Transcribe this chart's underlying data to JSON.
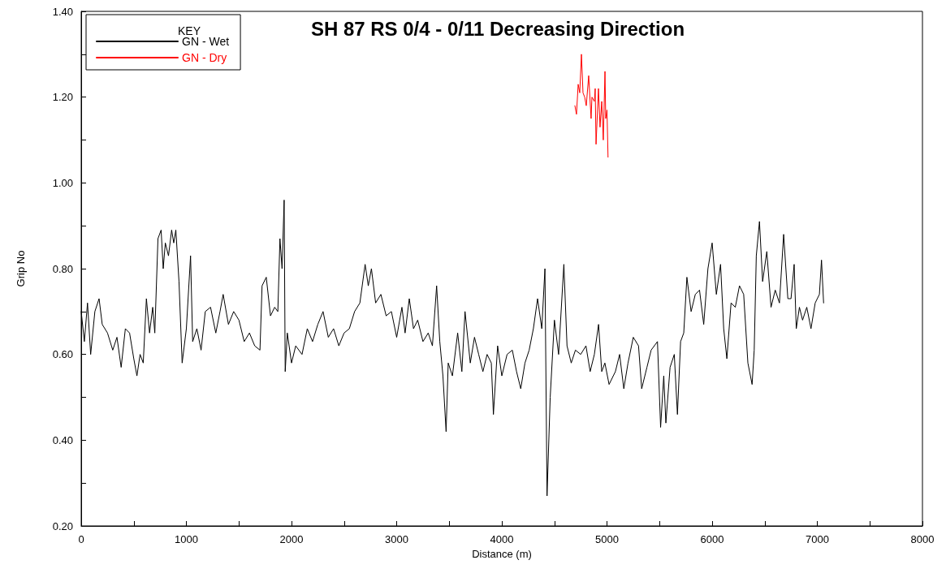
{
  "chart_data": {
    "type": "line",
    "title": "SH 87 RS 0/4 - 0/11 Decreasing Direction",
    "xlabel": "Distance (m)",
    "ylabel": "Grip No",
    "legend_title": "KEY",
    "legend": "top left",
    "grid": false,
    "marker": "none",
    "line_style": "solid",
    "xlim": [
      0,
      8000
    ],
    "xticks": [
      0,
      {
        "value": 500,
        "label": null
      },
      1000,
      {
        "value": 1500,
        "label": null
      },
      2000,
      {
        "value": 2500,
        "label": null
      },
      3000,
      {
        "value": 3500,
        "label": null
      },
      4000,
      {
        "value": 4500,
        "label": null
      },
      5000,
      {
        "value": 5500,
        "label": null
      },
      6000,
      {
        "value": 6500,
        "label": null
      },
      7000,
      {
        "value": 7500,
        "label": null
      },
      8000
    ],
    "ylim": [
      0.2,
      1.4
    ],
    "yticks": [
      {
        "value": 0.2,
        "label": "0.20"
      },
      {
        "value": 0.3,
        "label": null
      },
      {
        "value": 0.4,
        "label": "0.40"
      },
      {
        "value": 0.5,
        "label": null
      },
      {
        "value": 0.6,
        "label": "0.60"
      },
      {
        "value": 0.7,
        "label": null
      },
      {
        "value": 0.8,
        "label": "0.80"
      },
      {
        "value": 0.9,
        "label": null
      },
      {
        "value": 1.0,
        "label": "1.00"
      },
      {
        "value": 1.1,
        "label": null
      },
      {
        "value": 1.2,
        "label": "1.20"
      },
      {
        "value": 1.3,
        "label": null
      },
      {
        "value": 1.4,
        "label": "1.40"
      }
    ],
    "series": [
      {
        "name": "GN - Wet",
        "color": "#000000",
        "x": [
          0,
          30,
          60,
          90,
          130,
          170,
          200,
          250,
          300,
          340,
          380,
          420,
          460,
          500,
          530,
          560,
          590,
          620,
          650,
          680,
          700,
          730,
          760,
          780,
          800,
          830,
          860,
          880,
          900,
          930,
          960,
          1000,
          1040,
          1060,
          1100,
          1140,
          1180,
          1230,
          1280,
          1320,
          1350,
          1400,
          1450,
          1500,
          1550,
          1600,
          1650,
          1700,
          1720,
          1760,
          1800,
          1840,
          1870,
          1890,
          1910,
          1930,
          1940,
          1960,
          2000,
          2040,
          2100,
          2150,
          2200,
          2250,
          2300,
          2350,
          2400,
          2450,
          2500,
          2550,
          2600,
          2650,
          2700,
          2730,
          2760,
          2800,
          2850,
          2900,
          2950,
          3000,
          3050,
          3080,
          3120,
          3160,
          3200,
          3250,
          3300,
          3340,
          3380,
          3410,
          3440,
          3470,
          3490,
          3530,
          3580,
          3620,
          3650,
          3700,
          3740,
          3780,
          3820,
          3860,
          3900,
          3920,
          3960,
          4000,
          4050,
          4100,
          4140,
          4180,
          4220,
          4260,
          4300,
          4340,
          4380,
          4410,
          4430,
          4460,
          4500,
          4540,
          4590,
          4620,
          4660,
          4700,
          4750,
          4800,
          4840,
          4880,
          4920,
          4950,
          4980,
          5020,
          5080,
          5120,
          5160,
          5200,
          5250,
          5300,
          5330,
          5380,
          5420,
          5480,
          5510,
          5540,
          5560,
          5600,
          5640,
          5670,
          5700,
          5730,
          5760,
          5800,
          5840,
          5880,
          5920,
          5960,
          6000,
          6040,
          6080,
          6110,
          6140,
          6180,
          6220,
          6260,
          6300,
          6340,
          6380,
          6400,
          6420,
          6450,
          6480,
          6520,
          6560,
          6600,
          6640,
          6680,
          6720,
          6750,
          6780,
          6800,
          6830,
          6860,
          6900,
          6940,
          6980,
          7020,
          7040,
          7060
        ],
        "values": [
          0.7,
          0.63,
          0.72,
          0.6,
          0.7,
          0.73,
          0.67,
          0.65,
          0.61,
          0.64,
          0.57,
          0.66,
          0.65,
          0.59,
          0.55,
          0.6,
          0.58,
          0.73,
          0.65,
          0.71,
          0.65,
          0.87,
          0.89,
          0.8,
          0.86,
          0.83,
          0.89,
          0.86,
          0.89,
          0.77,
          0.58,
          0.66,
          0.83,
          0.63,
          0.66,
          0.61,
          0.7,
          0.71,
          0.65,
          0.7,
          0.74,
          0.67,
          0.7,
          0.68,
          0.63,
          0.65,
          0.62,
          0.61,
          0.76,
          0.78,
          0.69,
          0.71,
          0.7,
          0.87,
          0.8,
          0.96,
          0.56,
          0.65,
          0.58,
          0.62,
          0.6,
          0.66,
          0.63,
          0.67,
          0.7,
          0.64,
          0.66,
          0.62,
          0.65,
          0.66,
          0.7,
          0.72,
          0.81,
          0.76,
          0.8,
          0.72,
          0.74,
          0.69,
          0.7,
          0.64,
          0.71,
          0.65,
          0.73,
          0.66,
          0.68,
          0.63,
          0.65,
          0.62,
          0.76,
          0.63,
          0.55,
          0.42,
          0.58,
          0.55,
          0.65,
          0.56,
          0.7,
          0.58,
          0.64,
          0.6,
          0.56,
          0.6,
          0.58,
          0.46,
          0.62,
          0.55,
          0.6,
          0.61,
          0.56,
          0.52,
          0.58,
          0.61,
          0.66,
          0.73,
          0.66,
          0.8,
          0.27,
          0.5,
          0.68,
          0.6,
          0.81,
          0.62,
          0.58,
          0.61,
          0.6,
          0.62,
          0.56,
          0.6,
          0.67,
          0.56,
          0.58,
          0.53,
          0.56,
          0.6,
          0.52,
          0.58,
          0.64,
          0.62,
          0.52,
          0.57,
          0.61,
          0.63,
          0.43,
          0.55,
          0.44,
          0.57,
          0.6,
          0.46,
          0.63,
          0.65,
          0.78,
          0.7,
          0.74,
          0.75,
          0.67,
          0.8,
          0.86,
          0.74,
          0.81,
          0.66,
          0.59,
          0.72,
          0.71,
          0.76,
          0.74,
          0.58,
          0.53,
          0.61,
          0.83,
          0.91,
          0.77,
          0.84,
          0.71,
          0.75,
          0.72,
          0.88,
          0.73,
          0.73,
          0.81,
          0.66,
          0.71,
          0.68,
          0.71,
          0.66,
          0.72,
          0.74,
          0.82,
          0.72
        ]
      },
      {
        "name": "GN - Dry",
        "color": "#ff0000",
        "x": [
          4695,
          4710,
          4726,
          4741,
          4757,
          4772,
          4788,
          4803,
          4826,
          4849,
          4857,
          4880,
          4888,
          4896,
          4919,
          4934,
          4950,
          4965,
          4981,
          4988,
          5000,
          5010
        ],
        "values": [
          1.18,
          1.16,
          1.23,
          1.21,
          1.3,
          1.21,
          1.2,
          1.18,
          1.25,
          1.15,
          1.2,
          1.19,
          1.22,
          1.09,
          1.22,
          1.13,
          1.19,
          1.1,
          1.26,
          1.15,
          1.17,
          1.06
        ]
      }
    ]
  }
}
